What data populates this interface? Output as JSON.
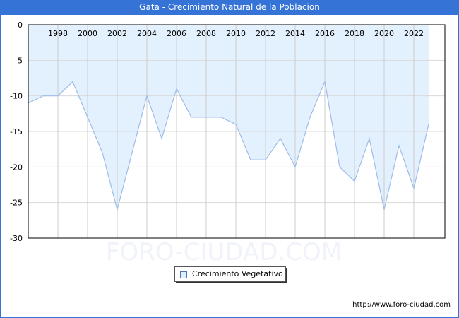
{
  "title": "Gata - Crecimiento Natural de la Poblacion",
  "watermark": "FORO-CIUDAD.COM",
  "url": "http://www.foro-ciudad.com",
  "legend": {
    "label": "Crecimiento Vegetativo"
  },
  "colors": {
    "titlebar": "#3574d6",
    "fill": "#e3f0fd",
    "line": "#9dbde8",
    "grid": "#d9d9d9"
  },
  "y_ticks": [
    "0",
    "-5",
    "-10",
    "-15",
    "-20",
    "-25",
    "-30"
  ],
  "x_ticks": [
    "1998",
    "2000",
    "2002",
    "2004",
    "2006",
    "2008",
    "2010",
    "2012",
    "2014",
    "2016",
    "2018",
    "2020",
    "2022"
  ],
  "chart_data": {
    "type": "area",
    "title": "Gata - Crecimiento Natural de la Poblacion",
    "xlabel": "",
    "ylabel": "",
    "ylim": [
      -30,
      0
    ],
    "grid": true,
    "legend_position": "bottom",
    "x": [
      1996,
      1997,
      1998,
      1999,
      2000,
      2001,
      2002,
      2003,
      2004,
      2005,
      2006,
      2007,
      2008,
      2009,
      2010,
      2011,
      2012,
      2013,
      2014,
      2015,
      2016,
      2017,
      2018,
      2019,
      2020,
      2021,
      2022,
      2023
    ],
    "series": [
      {
        "name": "Crecimiento Vegetativo",
        "values": [
          -11,
          -10,
          -10,
          -8,
          -13,
          -18,
          -26,
          -18,
          -10,
          -16,
          -9,
          -13,
          -13,
          -13,
          -14,
          -19,
          -19,
          -16,
          -20,
          -13,
          -8,
          -20,
          -22,
          -16,
          -26,
          -17,
          -23,
          -14
        ]
      }
    ]
  }
}
